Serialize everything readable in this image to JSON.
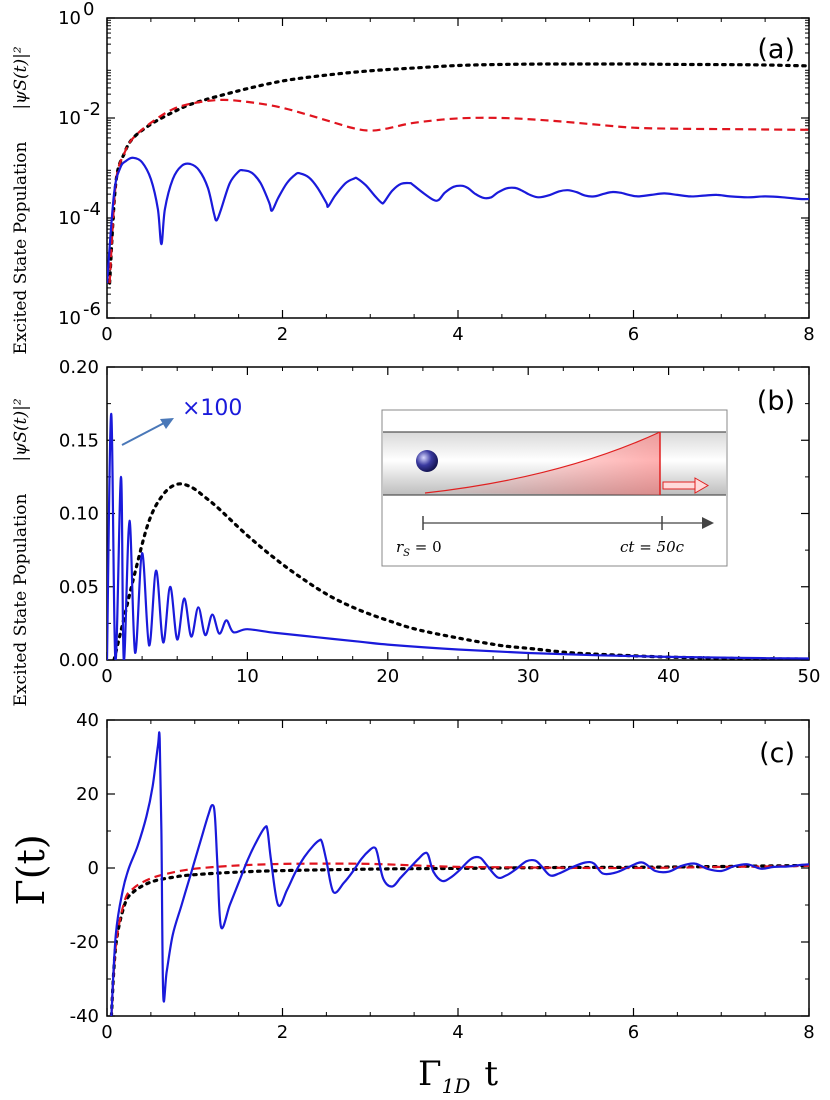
{
  "chart_data": [
    {
      "type": "line",
      "panel_label": "(a)",
      "ylabel": "Excited State Population",
      "ylabel_math": "|ψS(t)|²",
      "xlim": [
        0,
        8
      ],
      "ylim": [
        1e-06,
        1
      ],
      "yscale": "log",
      "xticks": [
        "0",
        "2",
        "4",
        "6",
        "8"
      ],
      "yticks": [
        {
          "base": "10",
          "exp": "0"
        },
        {
          "base": "10",
          "exp": "-2"
        },
        {
          "base": "10",
          "exp": "-4"
        },
        {
          "base": "10",
          "exp": "-6"
        }
      ],
      "series": [
        {
          "style": "dotted",
          "color": "#000000",
          "x": [
            0.03,
            0.1,
            0.2,
            0.3,
            0.5,
            0.75,
            1.0,
            1.5,
            2.0,
            2.5,
            3.0,
            3.5,
            4.0,
            4.5,
            5.0,
            5.5,
            6.0,
            6.5,
            7.0,
            7.5,
            8.0
          ],
          "y": [
            5e-06,
            0.0005,
            0.002,
            0.004,
            0.0075,
            0.013,
            0.02,
            0.035,
            0.055,
            0.072,
            0.088,
            0.1,
            0.112,
            0.118,
            0.12,
            0.12,
            0.12,
            0.118,
            0.117,
            0.115,
            0.11
          ]
        },
        {
          "style": "dashed",
          "color": "#e0141e",
          "x": [
            0.03,
            0.1,
            0.2,
            0.3,
            0.5,
            0.75,
            1.0,
            1.3,
            1.6,
            2.0,
            2.5,
            2.8,
            3.0,
            3.2,
            3.5,
            4.0,
            4.5,
            5.0,
            5.5,
            6.0,
            6.5,
            7.0,
            7.5,
            8.0
          ],
          "y": [
            5e-06,
            0.0005,
            0.002,
            0.004,
            0.008,
            0.015,
            0.02,
            0.023,
            0.021,
            0.016,
            0.009,
            0.0063,
            0.0056,
            0.0062,
            0.008,
            0.0098,
            0.01,
            0.009,
            0.0076,
            0.0064,
            0.0061,
            0.006,
            0.0059,
            0.0058
          ]
        },
        {
          "style": "solid",
          "color": "#1a1adb",
          "x": [
            0.0,
            0.08,
            0.15,
            0.22,
            0.3,
            0.4,
            0.5,
            0.58,
            0.62,
            0.66,
            0.75,
            0.85,
            0.95,
            1.05,
            1.15,
            1.22,
            1.25,
            1.3,
            1.4,
            1.5,
            1.55,
            1.65,
            1.75,
            1.85,
            1.88,
            1.95,
            2.05,
            2.15,
            2.2,
            2.3,
            2.4,
            2.5,
            2.52,
            2.6,
            2.72,
            2.82,
            2.85,
            2.95,
            3.05,
            3.13,
            3.16,
            3.25,
            3.35,
            3.45,
            3.48,
            3.6,
            3.72,
            3.78,
            3.85,
            3.95,
            4.05,
            4.12,
            4.2,
            4.3,
            4.38,
            4.45,
            4.55,
            4.65,
            4.72,
            4.82,
            4.92,
            5.05,
            5.15,
            5.25,
            5.35,
            5.45,
            5.55,
            5.65,
            5.75,
            5.85,
            5.95,
            6.05,
            6.2,
            6.35,
            6.5,
            6.65,
            6.8,
            6.95,
            7.1,
            7.3,
            7.5,
            7.7,
            7.9,
            8.0
          ],
          "y": [
            5e-06,
            0.0003,
            0.001,
            0.0014,
            0.0016,
            0.0013,
            0.0006,
            0.00015,
            3e-05,
            0.00015,
            0.0006,
            0.0011,
            0.0012,
            0.0009,
            0.0004,
            0.00012,
            9e-05,
            0.00015,
            0.0005,
            0.00085,
            0.0009,
            0.0008,
            0.0005,
            0.0002,
            0.00014,
            0.00025,
            0.0005,
            0.00075,
            0.00078,
            0.00065,
            0.0004,
            0.0002,
            0.00017,
            0.00028,
            0.0005,
            0.00062,
            0.00062,
            0.00045,
            0.00028,
            0.0002,
            0.00021,
            0.00035,
            0.00048,
            0.0005,
            0.00047,
            0.00032,
            0.00023,
            0.00023,
            0.00032,
            0.00042,
            0.00044,
            0.00039,
            0.0003,
            0.00025,
            0.00026,
            0.00032,
            0.00039,
            0.0004,
            0.00036,
            0.00029,
            0.00026,
            0.00029,
            0.00034,
            0.00036,
            0.00033,
            0.00028,
            0.00027,
            0.0003,
            0.00033,
            0.00032,
            0.00029,
            0.00027,
            0.00029,
            0.00031,
            0.00029,
            0.00027,
            0.00028,
            0.00029,
            0.00027,
            0.00026,
            0.00027,
            0.00026,
            0.00024,
            0.00024
          ]
        }
      ]
    },
    {
      "type": "line",
      "panel_label": "(b)",
      "ylabel": "Excited State Population",
      "ylabel_math": "|ψS(t)|²",
      "xlim": [
        0,
        50
      ],
      "ylim": [
        0,
        0.2
      ],
      "xticks": [
        "0",
        "10",
        "20",
        "30",
        "40",
        "50"
      ],
      "yticks": [
        "0.00",
        "0.05",
        "0.10",
        "0.15",
        "0.20"
      ],
      "annotation": "×100",
      "series": [
        {
          "style": "dotted",
          "color": "#000000",
          "x": [
            0.5,
            1,
            2,
            3,
            4,
            5,
            6,
            7,
            8,
            10,
            12,
            14,
            16,
            18,
            20,
            22,
            25,
            28,
            30,
            33,
            36,
            40,
            45,
            50
          ],
          "y": [
            0.0,
            0.02,
            0.06,
            0.095,
            0.113,
            0.12,
            0.118,
            0.111,
            0.103,
            0.085,
            0.069,
            0.055,
            0.043,
            0.034,
            0.027,
            0.021,
            0.015,
            0.01,
            0.008,
            0.005,
            0.0035,
            0.002,
            0.001,
            0.0006
          ]
        },
        {
          "style": "solid",
          "color": "#1a1adb",
          "scale_note": "×100",
          "x": [
            0,
            0.3,
            0.6,
            1.0,
            1.2,
            1.6,
            2.0,
            2.5,
            3.0,
            3.5,
            4.0,
            4.5,
            5.0,
            5.5,
            6.0,
            6.5,
            7.0,
            7.5,
            8.0,
            8.5,
            9.0,
            10,
            12,
            15,
            18,
            20,
            25,
            30,
            35,
            40,
            45,
            50
          ],
          "y": [
            0.0,
            0.168,
            0.0,
            0.125,
            0.0,
            0.095,
            0.005,
            0.073,
            0.01,
            0.061,
            0.012,
            0.05,
            0.014,
            0.042,
            0.016,
            0.036,
            0.017,
            0.031,
            0.018,
            0.027,
            0.019,
            0.021,
            0.0185,
            0.0155,
            0.0125,
            0.0105,
            0.0072,
            0.0048,
            0.0032,
            0.0021,
            0.0014,
            0.001
          ]
        }
      ],
      "inset": {
        "label_left_main": "r",
        "label_left_sub": "S",
        "label_left_rest": " = 0",
        "label_right": "ct = 50c"
      }
    },
    {
      "type": "line",
      "panel_label": "(c)",
      "ylabel": "Γ(t)",
      "xlabel_main": "Γ",
      "xlabel_sub": "1D",
      "xlabel_rest": "t",
      "xlim": [
        0,
        8
      ],
      "ylim": [
        -40,
        40
      ],
      "xticks": [
        "0",
        "2",
        "4",
        "6",
        "8"
      ],
      "yticks": [
        "40",
        "20",
        "0",
        "-20",
        "-40"
      ],
      "series": [
        {
          "style": "dotted",
          "color": "#000000",
          "x": [
            0.05,
            0.1,
            0.2,
            0.3,
            0.5,
            0.75,
            1.0,
            1.5,
            2.0,
            3.0,
            4.0,
            5.0,
            6.0,
            7.0,
            8.0
          ],
          "y": [
            -40,
            -21,
            -10,
            -6.5,
            -3.8,
            -2.5,
            -1.8,
            -1.1,
            -0.7,
            -0.3,
            -0.1,
            0.1,
            0.2,
            0.4,
            0.7
          ]
        },
        {
          "style": "dashed",
          "color": "#e0141e",
          "x": [
            0.05,
            0.1,
            0.2,
            0.3,
            0.5,
            0.75,
            1.0,
            1.3,
            1.6,
            2.0,
            2.5,
            3.0,
            3.5,
            4.0,
            4.5,
            5.0,
            5.5,
            6.0,
            6.5,
            7.0,
            7.5,
            8.0
          ],
          "y": [
            -40,
            -21,
            -9,
            -5.5,
            -2.8,
            -1.2,
            -0.2,
            0.4,
            0.8,
            1.1,
            1.2,
            1.1,
            0.7,
            0.3,
            0.2,
            0.1,
            0.0,
            0.0,
            0.1,
            0.3,
            0.4,
            0.6
          ]
        },
        {
          "style": "solid",
          "color": "#1a1adb",
          "x": [
            0.05,
            0.1,
            0.18,
            0.25,
            0.35,
            0.45,
            0.52,
            0.58,
            0.6,
            0.62,
            0.64,
            0.68,
            0.75,
            0.85,
            0.95,
            1.05,
            1.15,
            1.2,
            1.23,
            1.26,
            1.3,
            1.4,
            1.5,
            1.6,
            1.7,
            1.8,
            1.83,
            1.87,
            1.95,
            2.05,
            2.15,
            2.25,
            2.35,
            2.42,
            2.45,
            2.5,
            2.58,
            2.7,
            2.8,
            2.9,
            3.0,
            3.05,
            3.08,
            3.15,
            3.25,
            3.35,
            3.45,
            3.55,
            3.62,
            3.66,
            3.72,
            3.82,
            3.92,
            4.02,
            4.15,
            4.25,
            4.32,
            4.45,
            4.55,
            4.65,
            4.78,
            4.88,
            4.95,
            5.05,
            5.15,
            5.3,
            5.45,
            5.55,
            5.65,
            5.8,
            5.95,
            6.1,
            6.25,
            6.4,
            6.55,
            6.7,
            6.85,
            7.0,
            7.15,
            7.3,
            7.45,
            7.6,
            7.75,
            7.9,
            8.0
          ],
          "y": [
            -40,
            -18,
            -6,
            0,
            6,
            14,
            22,
            33,
            35,
            10,
            -34,
            -28,
            -18,
            -10,
            -2,
            6,
            14,
            17,
            14,
            0,
            -16,
            -10,
            -4,
            2,
            7,
            11,
            10,
            2,
            -10,
            -6,
            -1,
            3,
            6,
            7.5,
            7,
            2,
            -6.5,
            -4,
            -1,
            2.5,
            5,
            5.5,
            4,
            -3,
            -5,
            -2.5,
            0,
            2.5,
            4,
            3.5,
            -1,
            -3.5,
            -2.5,
            -0.5,
            2.5,
            2.8,
            1,
            -2.5,
            -2,
            -0.5,
            1.8,
            2,
            0.5,
            -2,
            -1.5,
            0.2,
            1.5,
            1.2,
            -1.5,
            -1.2,
            0.3,
            1.5,
            -0.8,
            -1,
            0.6,
            1.2,
            -0.3,
            -0.8,
            0.5,
            1,
            -0.2,
            0.3,
            0.4,
            0.8,
            1
          ]
        }
      ]
    }
  ]
}
